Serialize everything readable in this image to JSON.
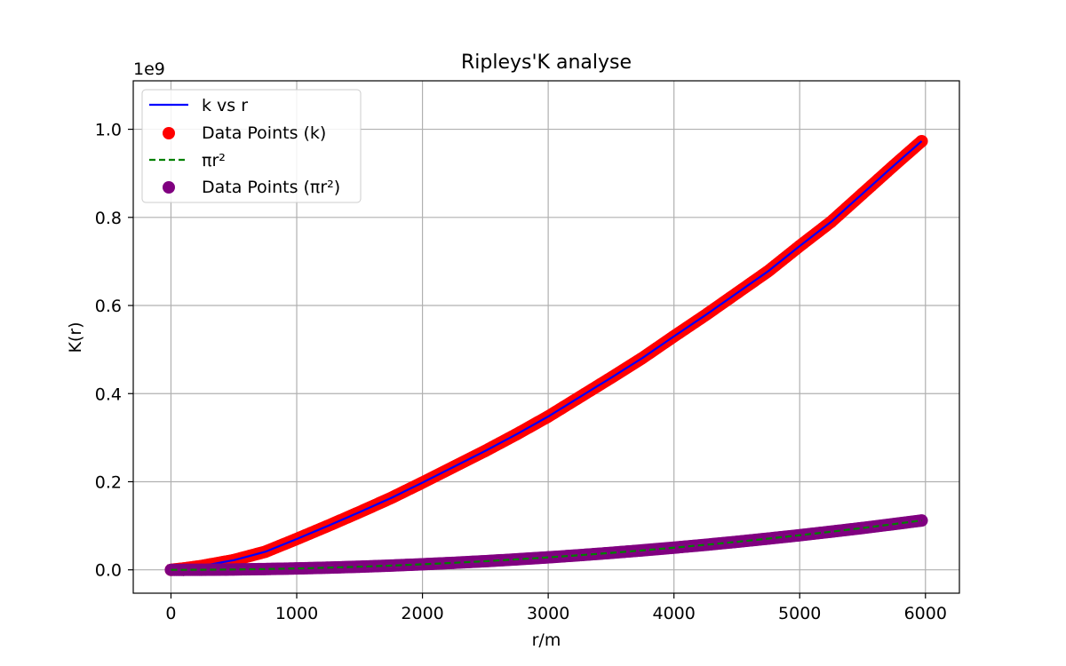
{
  "chart_data": {
    "type": "line",
    "title": "Ripleys'K analyse",
    "xlabel": "r/m",
    "ylabel": "K(r)",
    "y_offset_label": "1e9",
    "xlim": [
      -300,
      6270
    ],
    "ylim": [
      -0.053,
      1.11
    ],
    "x_ticks": [
      0,
      1000,
      2000,
      3000,
      4000,
      5000,
      6000
    ],
    "y_ticks": [
      0.0,
      0.2,
      0.4,
      0.6,
      0.8,
      1.0
    ],
    "y_tick_labels": [
      "0.0",
      "0.2",
      "0.4",
      "0.6",
      "0.8",
      "1.0"
    ],
    "grid": true,
    "legend_position": "top-left",
    "x": [
      0,
      100,
      250,
      500,
      750,
      1000,
      1250,
      1500,
      1750,
      2000,
      2250,
      2500,
      2750,
      3000,
      3250,
      3500,
      3750,
      4000,
      4250,
      4500,
      4750,
      5000,
      5250,
      5500,
      5750,
      5970
    ],
    "series": [
      {
        "name": "k vs r",
        "kind": "line",
        "style": "solid",
        "color": "#0000ff",
        "values": [
          0.0,
          0.003,
          0.009,
          0.022,
          0.041,
          0.07,
          0.1,
          0.131,
          0.163,
          0.198,
          0.234,
          0.27,
          0.308,
          0.348,
          0.392,
          0.436,
          0.481,
          0.53,
          0.578,
          0.628,
          0.678,
          0.735,
          0.79,
          0.854,
          0.918,
          0.973
        ]
      },
      {
        "name": "Data Points (k)",
        "kind": "scatter",
        "color": "#ff0000",
        "values": [
          0.0,
          0.003,
          0.009,
          0.022,
          0.041,
          0.07,
          0.1,
          0.131,
          0.163,
          0.198,
          0.234,
          0.27,
          0.308,
          0.348,
          0.392,
          0.436,
          0.481,
          0.53,
          0.578,
          0.628,
          0.678,
          0.735,
          0.79,
          0.854,
          0.918,
          0.973
        ]
      },
      {
        "name": "πr²",
        "kind": "line",
        "style": "dashed",
        "color": "#008000",
        "values": [
          0.0,
          3.14e-05,
          0.000196,
          0.000785,
          0.00177,
          0.00314,
          0.00491,
          0.00707,
          0.00962,
          0.0126,
          0.0159,
          0.0196,
          0.0238,
          0.0283,
          0.0332,
          0.0385,
          0.0442,
          0.0503,
          0.0567,
          0.0636,
          0.0709,
          0.0785,
          0.0866,
          0.095,
          0.1039,
          0.112
        ]
      },
      {
        "name": "Data Points (πr²)",
        "kind": "scatter",
        "color": "#800080",
        "values": [
          0.0,
          3.14e-05,
          0.000196,
          0.000785,
          0.00177,
          0.00314,
          0.00491,
          0.00707,
          0.00962,
          0.0126,
          0.0159,
          0.0196,
          0.0238,
          0.0283,
          0.0332,
          0.0385,
          0.0442,
          0.0503,
          0.0567,
          0.0636,
          0.0709,
          0.0785,
          0.0866,
          0.095,
          0.1039,
          0.112
        ]
      }
    ]
  }
}
